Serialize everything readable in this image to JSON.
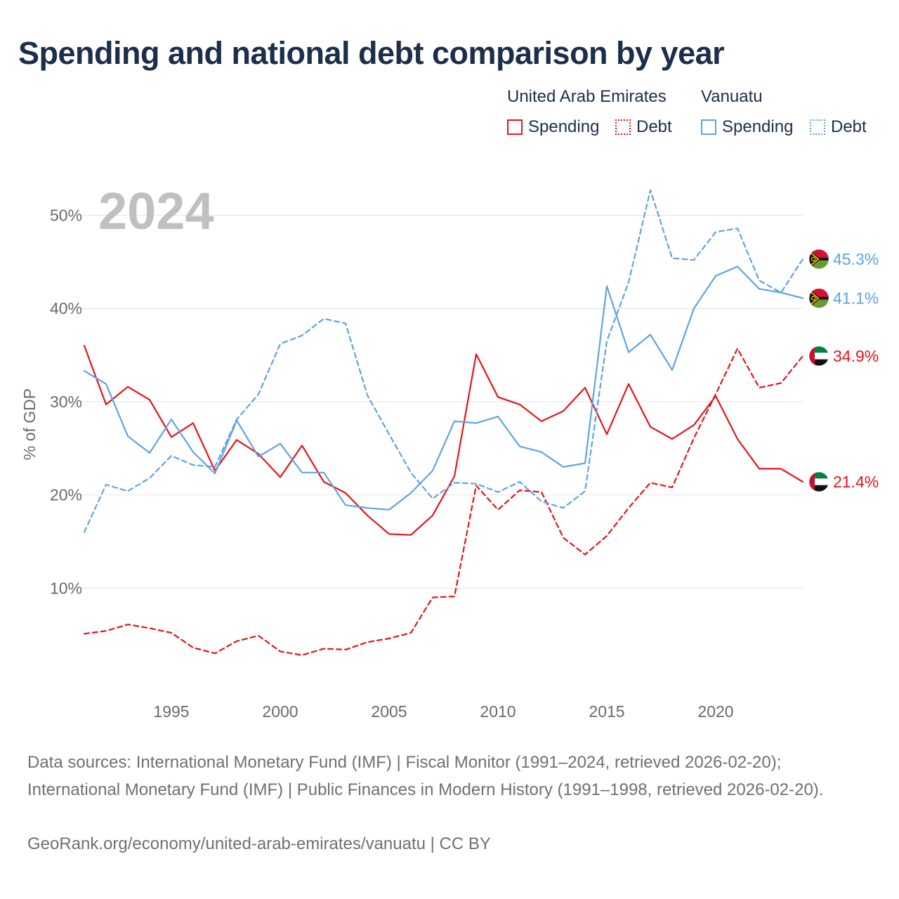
{
  "title": "Spending and national debt comparison by year",
  "legend": {
    "uae_title": "United Arab Emirates",
    "vanuatu_title": "Vanuatu",
    "uae_spending": "Spending",
    "uae_debt": "Debt",
    "vut_spending": "Spending",
    "vut_debt": "Debt"
  },
  "colors": {
    "uae": "#e8141a",
    "vanuatu": "#5ea4e3"
  },
  "year_label": "2024",
  "chart_data": {
    "type": "line",
    "title": "Spending and national debt comparison by year",
    "xlabel": "",
    "ylabel": "% of GDP",
    "xlim": [
      1991,
      2024
    ],
    "ylim": [
      0,
      55
    ],
    "x_ticks": [
      1995,
      2000,
      2005,
      2010,
      2015,
      2020
    ],
    "y_ticks": [
      10,
      20,
      30,
      40,
      50
    ],
    "y_tick_labels": [
      "10%",
      "20%",
      "30%",
      "40%",
      "50%"
    ],
    "x": [
      1991,
      1992,
      1993,
      1994,
      1995,
      1996,
      1997,
      1998,
      1999,
      2000,
      2001,
      2002,
      2003,
      2004,
      2005,
      2006,
      2007,
      2008,
      2009,
      2010,
      2011,
      2012,
      2013,
      2014,
      2015,
      2016,
      2017,
      2018,
      2019,
      2020,
      2021,
      2022,
      2023,
      2024
    ],
    "series": [
      {
        "name": "United Arab Emirates Spending",
        "country": "uae",
        "style": "solid",
        "end_label": "21.4%",
        "values": [
          36.0,
          29.7,
          31.6,
          30.2,
          26.2,
          27.7,
          22.6,
          25.9,
          24.4,
          21.9,
          25.3,
          21.4,
          20.2,
          17.8,
          15.8,
          15.7,
          17.8,
          22.0,
          35.1,
          30.5,
          29.7,
          27.9,
          29.0,
          31.5,
          26.5,
          31.9,
          27.3,
          26.0,
          27.5,
          30.6,
          26.0,
          22.8,
          22.8,
          21.4
        ]
      },
      {
        "name": "United Arab Emirates Debt",
        "country": "uae",
        "style": "dashed",
        "end_label": "34.9%",
        "values": [
          5.1,
          5.4,
          6.1,
          5.7,
          5.2,
          3.6,
          3.0,
          4.3,
          4.9,
          3.2,
          2.8,
          3.5,
          3.4,
          4.2,
          4.6,
          5.2,
          9.0,
          9.1,
          21.0,
          18.4,
          20.5,
          20.3,
          15.4,
          13.6,
          15.6,
          18.6,
          21.3,
          20.8,
          26.1,
          30.8,
          35.7,
          31.5,
          32.0,
          34.9
        ]
      },
      {
        "name": "Vanuatu Spending",
        "country": "vanuatu",
        "style": "solid",
        "end_label": "41.1%",
        "values": [
          33.3,
          31.9,
          26.3,
          24.5,
          28.1,
          24.6,
          22.3,
          28.0,
          24.1,
          25.5,
          22.4,
          22.4,
          18.9,
          18.6,
          18.4,
          20.2,
          22.6,
          27.9,
          27.7,
          28.4,
          25.2,
          24.6,
          23.0,
          23.4,
          42.4,
          35.3,
          37.2,
          33.4,
          40.0,
          43.5,
          44.5,
          42.1,
          41.7,
          41.1
        ]
      },
      {
        "name": "Vanuatu Debt",
        "country": "vanuatu",
        "style": "dashed",
        "end_label": "45.3%",
        "values": [
          16.0,
          21.1,
          20.4,
          21.8,
          24.2,
          23.2,
          23.0,
          28.1,
          30.8,
          36.2,
          37.1,
          38.9,
          38.4,
          30.7,
          26.5,
          22.4,
          19.6,
          21.3,
          21.2,
          20.3,
          21.4,
          19.3,
          18.6,
          20.4,
          36.5,
          42.8,
          52.7,
          45.4,
          45.2,
          48.2,
          48.6,
          43.0,
          41.7,
          45.3
        ]
      }
    ]
  },
  "sources_text": "Data sources: International Monetary Fund (IMF) | Fiscal Monitor (1991–2024, retrieved 2026-02-20); International Monetary Fund (IMF) | Public Finances in Modern History (1991–1998, retrieved 2026-02-20).",
  "credit_text": "GeoRank.org/economy/united-arab-emirates/vanuatu | CC BY"
}
